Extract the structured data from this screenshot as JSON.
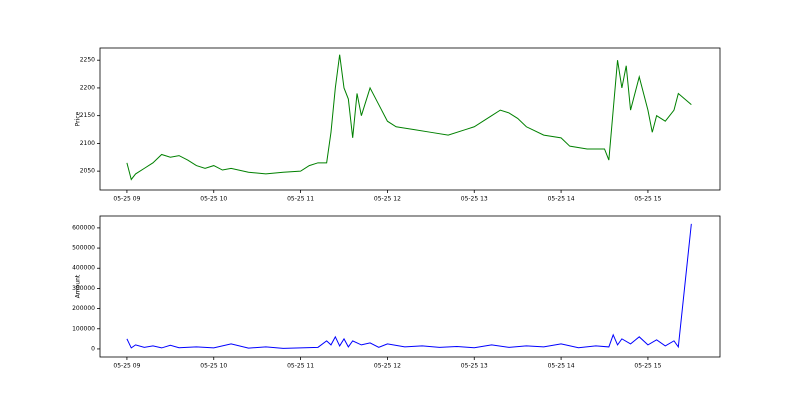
{
  "chart_data": [
    {
      "type": "line",
      "ylabel": "Price",
      "x": [
        9.0,
        9.05,
        9.1,
        9.2,
        9.3,
        9.4,
        9.5,
        9.6,
        9.7,
        9.8,
        9.9,
        10.0,
        10.1,
        10.2,
        10.4,
        10.6,
        10.8,
        11.0,
        11.1,
        11.2,
        11.3,
        11.35,
        11.4,
        11.45,
        11.5,
        11.55,
        11.6,
        11.65,
        11.7,
        11.8,
        11.9,
        12.0,
        12.1,
        12.3,
        12.5,
        12.7,
        12.9,
        13.0,
        13.2,
        13.3,
        13.4,
        13.5,
        13.6,
        13.8,
        14.0,
        14.1,
        14.3,
        14.5,
        14.55,
        14.6,
        14.65,
        14.7,
        14.75,
        14.8,
        14.9,
        15.0,
        15.05,
        15.1,
        15.2,
        15.3,
        15.35,
        15.5
      ],
      "series": [
        {
          "name": "Price",
          "color": "#008000",
          "values": [
            2065,
            2035,
            2045,
            2055,
            2065,
            2080,
            2075,
            2078,
            2070,
            2060,
            2055,
            2060,
            2052,
            2055,
            2048,
            2045,
            2048,
            2050,
            2060,
            2065,
            2065,
            2120,
            2200,
            2260,
            2200,
            2180,
            2110,
            2190,
            2150,
            2200,
            2170,
            2140,
            2130,
            2125,
            2120,
            2115,
            2125,
            2130,
            2150,
            2160,
            2155,
            2145,
            2130,
            2115,
            2110,
            2095,
            2090,
            2090,
            2070,
            2160,
            2250,
            2200,
            2240,
            2160,
            2220,
            2160,
            2120,
            2150,
            2140,
            2160,
            2190,
            2170
          ]
        }
      ],
      "xlim": [
        8.69,
        15.83
      ],
      "ylim": [
        2016,
        2272
      ],
      "xticks": [
        {
          "value": 9,
          "label": "05-25 09"
        },
        {
          "value": 10,
          "label": "05-25 10"
        },
        {
          "value": 11,
          "label": "05-25 11"
        },
        {
          "value": 12,
          "label": "05-25 12"
        },
        {
          "value": 13,
          "label": "05-25 13"
        },
        {
          "value": 14,
          "label": "05-25 14"
        },
        {
          "value": 15,
          "label": "05-25 15"
        }
      ],
      "yticks": [
        2050,
        2100,
        2150,
        2200,
        2250
      ]
    },
    {
      "type": "line",
      "ylabel": "Amount",
      "x": [
        9.0,
        9.05,
        9.1,
        9.2,
        9.3,
        9.4,
        9.5,
        9.6,
        9.8,
        10.0,
        10.2,
        10.4,
        10.6,
        10.8,
        11.0,
        11.2,
        11.3,
        11.35,
        11.4,
        11.45,
        11.5,
        11.55,
        11.6,
        11.7,
        11.8,
        11.9,
        12.0,
        12.2,
        12.4,
        12.6,
        12.8,
        13.0,
        13.2,
        13.4,
        13.6,
        13.8,
        14.0,
        14.2,
        14.4,
        14.55,
        14.6,
        14.65,
        14.7,
        14.8,
        14.9,
        15.0,
        15.1,
        15.2,
        15.3,
        15.35,
        15.5
      ],
      "series": [
        {
          "name": "Amount",
          "color": "#0000ff",
          "values": [
            50000,
            5000,
            20000,
            8000,
            15000,
            5000,
            18000,
            6000,
            10000,
            5000,
            25000,
            4000,
            10000,
            3000,
            5000,
            8000,
            40000,
            20000,
            60000,
            15000,
            50000,
            10000,
            40000,
            20000,
            30000,
            8000,
            25000,
            10000,
            15000,
            8000,
            12000,
            6000,
            20000,
            8000,
            15000,
            10000,
            25000,
            6000,
            15000,
            10000,
            70000,
            20000,
            50000,
            25000,
            60000,
            20000,
            45000,
            15000,
            40000,
            10000,
            620000
          ]
        }
      ],
      "xlim": [
        8.69,
        15.83
      ],
      "ylim": [
        -40000,
        659000
      ],
      "xticks": [
        {
          "value": 9,
          "label": "05-25 09"
        },
        {
          "value": 10,
          "label": "05-25 10"
        },
        {
          "value": 11,
          "label": "05-25 11"
        },
        {
          "value": 12,
          "label": "05-25 12"
        },
        {
          "value": 13,
          "label": "05-25 13"
        },
        {
          "value": 14,
          "label": "05-25 14"
        },
        {
          "value": 15,
          "label": "05-25 15"
        }
      ],
      "yticks": [
        0,
        100000,
        200000,
        300000,
        400000,
        500000,
        600000
      ]
    }
  ]
}
